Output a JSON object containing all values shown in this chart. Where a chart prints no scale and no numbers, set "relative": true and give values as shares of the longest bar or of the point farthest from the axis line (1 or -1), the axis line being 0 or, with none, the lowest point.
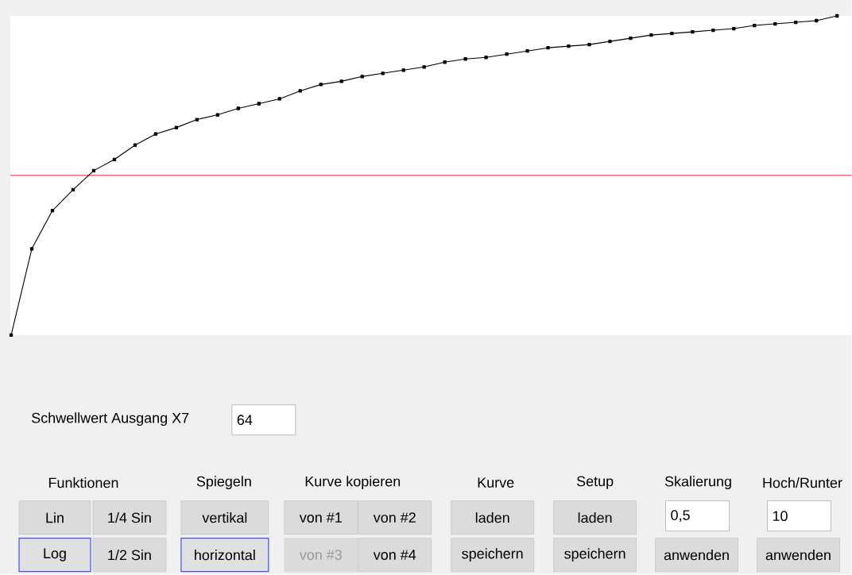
{
  "chart_data": {
    "type": "line",
    "relative": true,
    "categories": [
      null,
      null,
      null,
      null,
      null,
      null,
      null,
      null,
      null,
      null,
      null,
      null,
      null,
      null,
      null,
      null,
      null,
      null,
      null,
      null,
      null,
      null,
      null,
      null,
      null,
      null,
      null,
      null,
      null,
      null,
      null,
      null,
      null,
      null,
      null,
      null,
      null,
      null,
      null,
      null,
      null
    ],
    "series": [
      {
        "color": "#000000",
        "values": [
          0,
          0.27,
          0.39,
          0.455,
          0.515,
          0.55,
          0.595,
          0.63,
          0.65,
          0.675,
          0.69,
          0.71,
          0.725,
          0.74,
          0.765,
          0.785,
          0.795,
          0.81,
          0.82,
          0.83,
          0.84,
          0.855,
          0.865,
          0.87,
          0.88,
          0.89,
          0.9,
          0.905,
          0.91,
          0.92,
          0.93,
          0.94,
          0.945,
          0.95,
          0.955,
          0.96,
          0.97,
          0.975,
          0.98,
          0.985,
          1
        ]
      }
    ],
    "marker": "square",
    "line_style": "solid",
    "ref_lines": [
      {
        "axis": "y",
        "value": 0.5,
        "color": "#ff3333"
      }
    ],
    "annotations": [
      "Schwellwert Ausgang X7",
      "64",
      "Funktionen",
      "Spiegeln",
      "Kurve kopieren",
      "Kurve",
      "Setup",
      "Skalierung",
      "Hoch/Runter",
      "Lin",
      "1/4 Sin",
      "vertikal",
      "von #1",
      "von #2",
      "laden",
      "laden",
      "0,5",
      "10",
      "Log",
      "1/2 Sin",
      "horizontal",
      "von #3",
      "von #4",
      "speichern",
      "speichern",
      "anwenden",
      "anwenden"
    ]
  }
}
